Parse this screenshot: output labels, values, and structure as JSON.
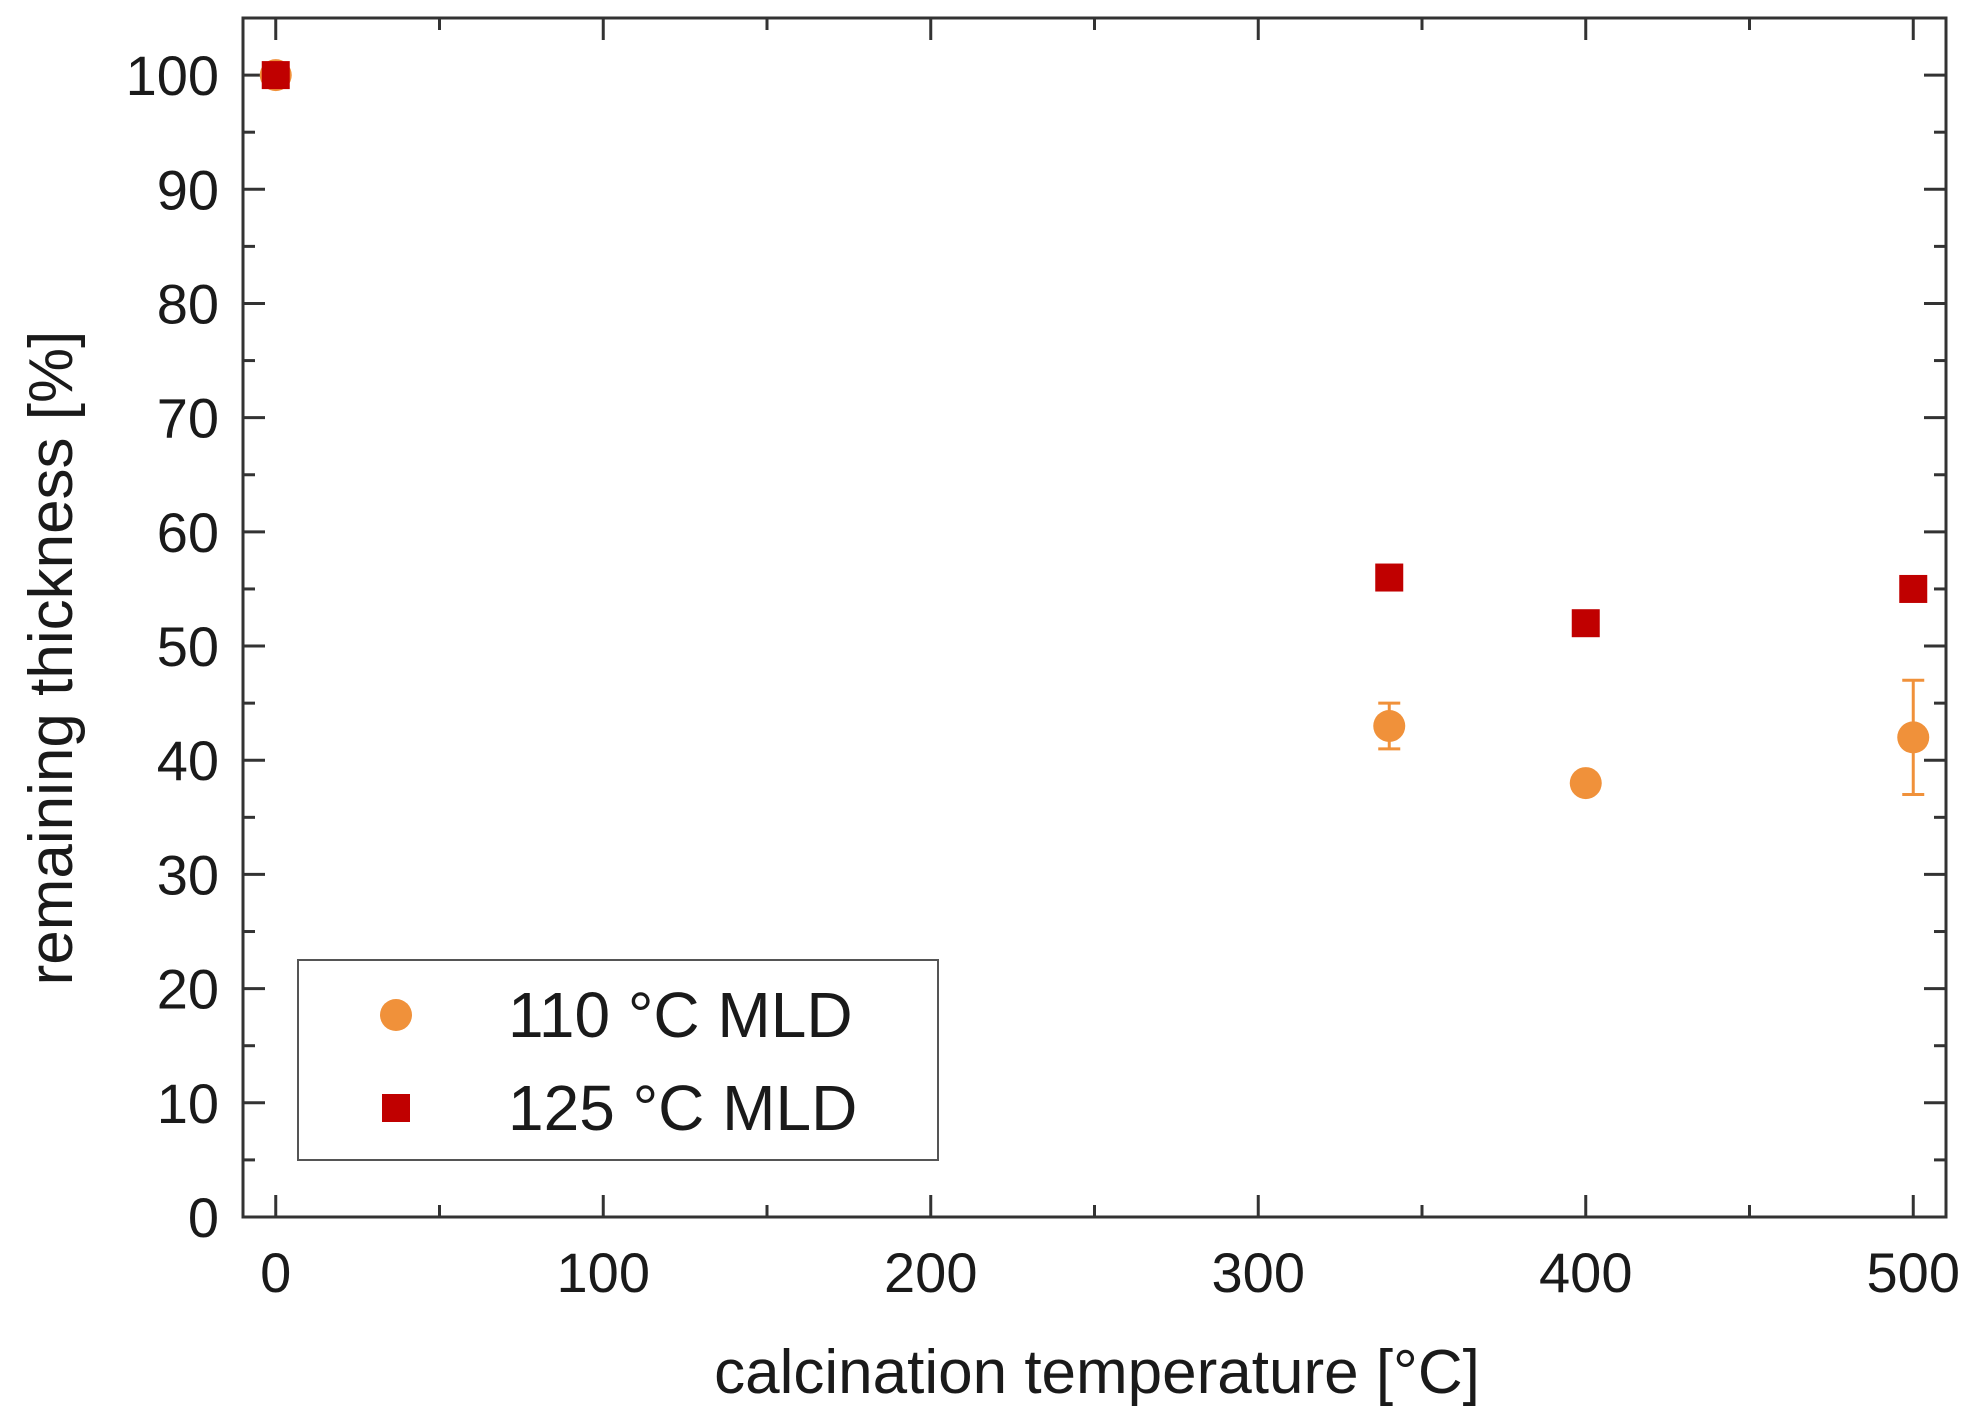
{
  "chart_data": {
    "type": "scatter",
    "title": "",
    "xlabel": "calcination temperature [°C]",
    "ylabel": "remaining thickness [%]",
    "xlim": [
      -10,
      510
    ],
    "ylim": [
      0,
      105
    ],
    "xticks": [
      0,
      100,
      200,
      300,
      400,
      500
    ],
    "xtick_labels": [
      "0",
      "100",
      "200",
      "300",
      "400",
      "500"
    ],
    "yticks": [
      0,
      10,
      20,
      30,
      40,
      50,
      60,
      70,
      80,
      90,
      100
    ],
    "ytick_labels": [
      "0",
      "10",
      "20",
      "30",
      "40",
      "50",
      "60",
      "70",
      "80",
      "90",
      "100"
    ],
    "x_minor_step": 50,
    "y_minor_step": 5,
    "grid": false,
    "legend_position": "bottom-left",
    "series": [
      {
        "name": "110 °C MLD",
        "marker": "circle",
        "color": "#f0913a",
        "points": [
          {
            "x": 0,
            "y": 100,
            "err": 0
          },
          {
            "x": 340,
            "y": 43,
            "err": 2
          },
          {
            "x": 400,
            "y": 38,
            "err": 0
          },
          {
            "x": 500,
            "y": 42,
            "err": 5
          }
        ]
      },
      {
        "name": "125 °C MLD",
        "marker": "square",
        "color": "#c00000",
        "points": [
          {
            "x": 0,
            "y": 100,
            "err": 0
          },
          {
            "x": 340,
            "y": 56,
            "err": 0
          },
          {
            "x": 400,
            "y": 52,
            "err": 0
          },
          {
            "x": 500,
            "y": 55,
            "err": 0
          }
        ]
      }
    ]
  }
}
